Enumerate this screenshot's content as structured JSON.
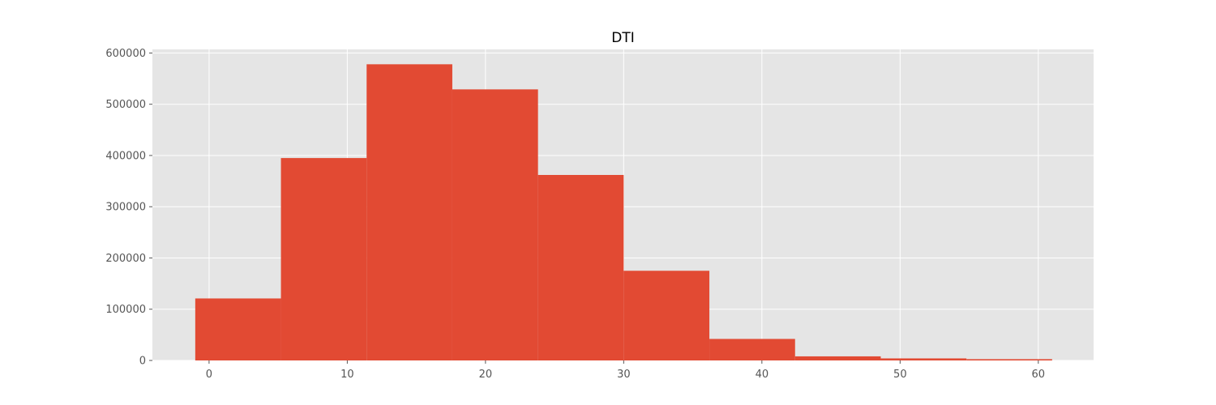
{
  "chart_data": {
    "type": "bar",
    "title": "DTI",
    "xlabel": "",
    "ylabel": "",
    "grid": true,
    "xlim": [
      -4.1,
      64.0
    ],
    "ylim": [
      0,
      607000
    ],
    "x_ticks": [
      0,
      10,
      20,
      30,
      40,
      50,
      60
    ],
    "y_ticks": [
      0,
      100000,
      200000,
      300000,
      400000,
      500000,
      600000
    ],
    "x_tick_labels": [
      "0",
      "10",
      "20",
      "30",
      "40",
      "50",
      "60"
    ],
    "y_tick_labels": [
      "0",
      "100000",
      "200000",
      "300000",
      "400000",
      "500000",
      "600000"
    ],
    "bins": [
      {
        "x0": -1.0,
        "x1": 5.2,
        "count": 121000
      },
      {
        "x0": 5.2,
        "x1": 11.4,
        "count": 395000
      },
      {
        "x0": 11.4,
        "x1": 17.6,
        "count": 578000
      },
      {
        "x0": 17.6,
        "x1": 23.8,
        "count": 529000
      },
      {
        "x0": 23.8,
        "x1": 30.0,
        "count": 362000
      },
      {
        "x0": 30.0,
        "x1": 36.2,
        "count": 175000
      },
      {
        "x0": 36.2,
        "x1": 42.4,
        "count": 42000
      },
      {
        "x0": 42.4,
        "x1": 48.6,
        "count": 8000
      },
      {
        "x0": 48.6,
        "x1": 54.8,
        "count": 4000
      },
      {
        "x0": 54.8,
        "x1": 61.0,
        "count": 2500
      }
    ],
    "colors": {
      "bar": "#e24a33",
      "plot_bg": "#e5e5e5",
      "grid": "#ffffff",
      "tick": "#555555",
      "title": "#000000"
    }
  }
}
